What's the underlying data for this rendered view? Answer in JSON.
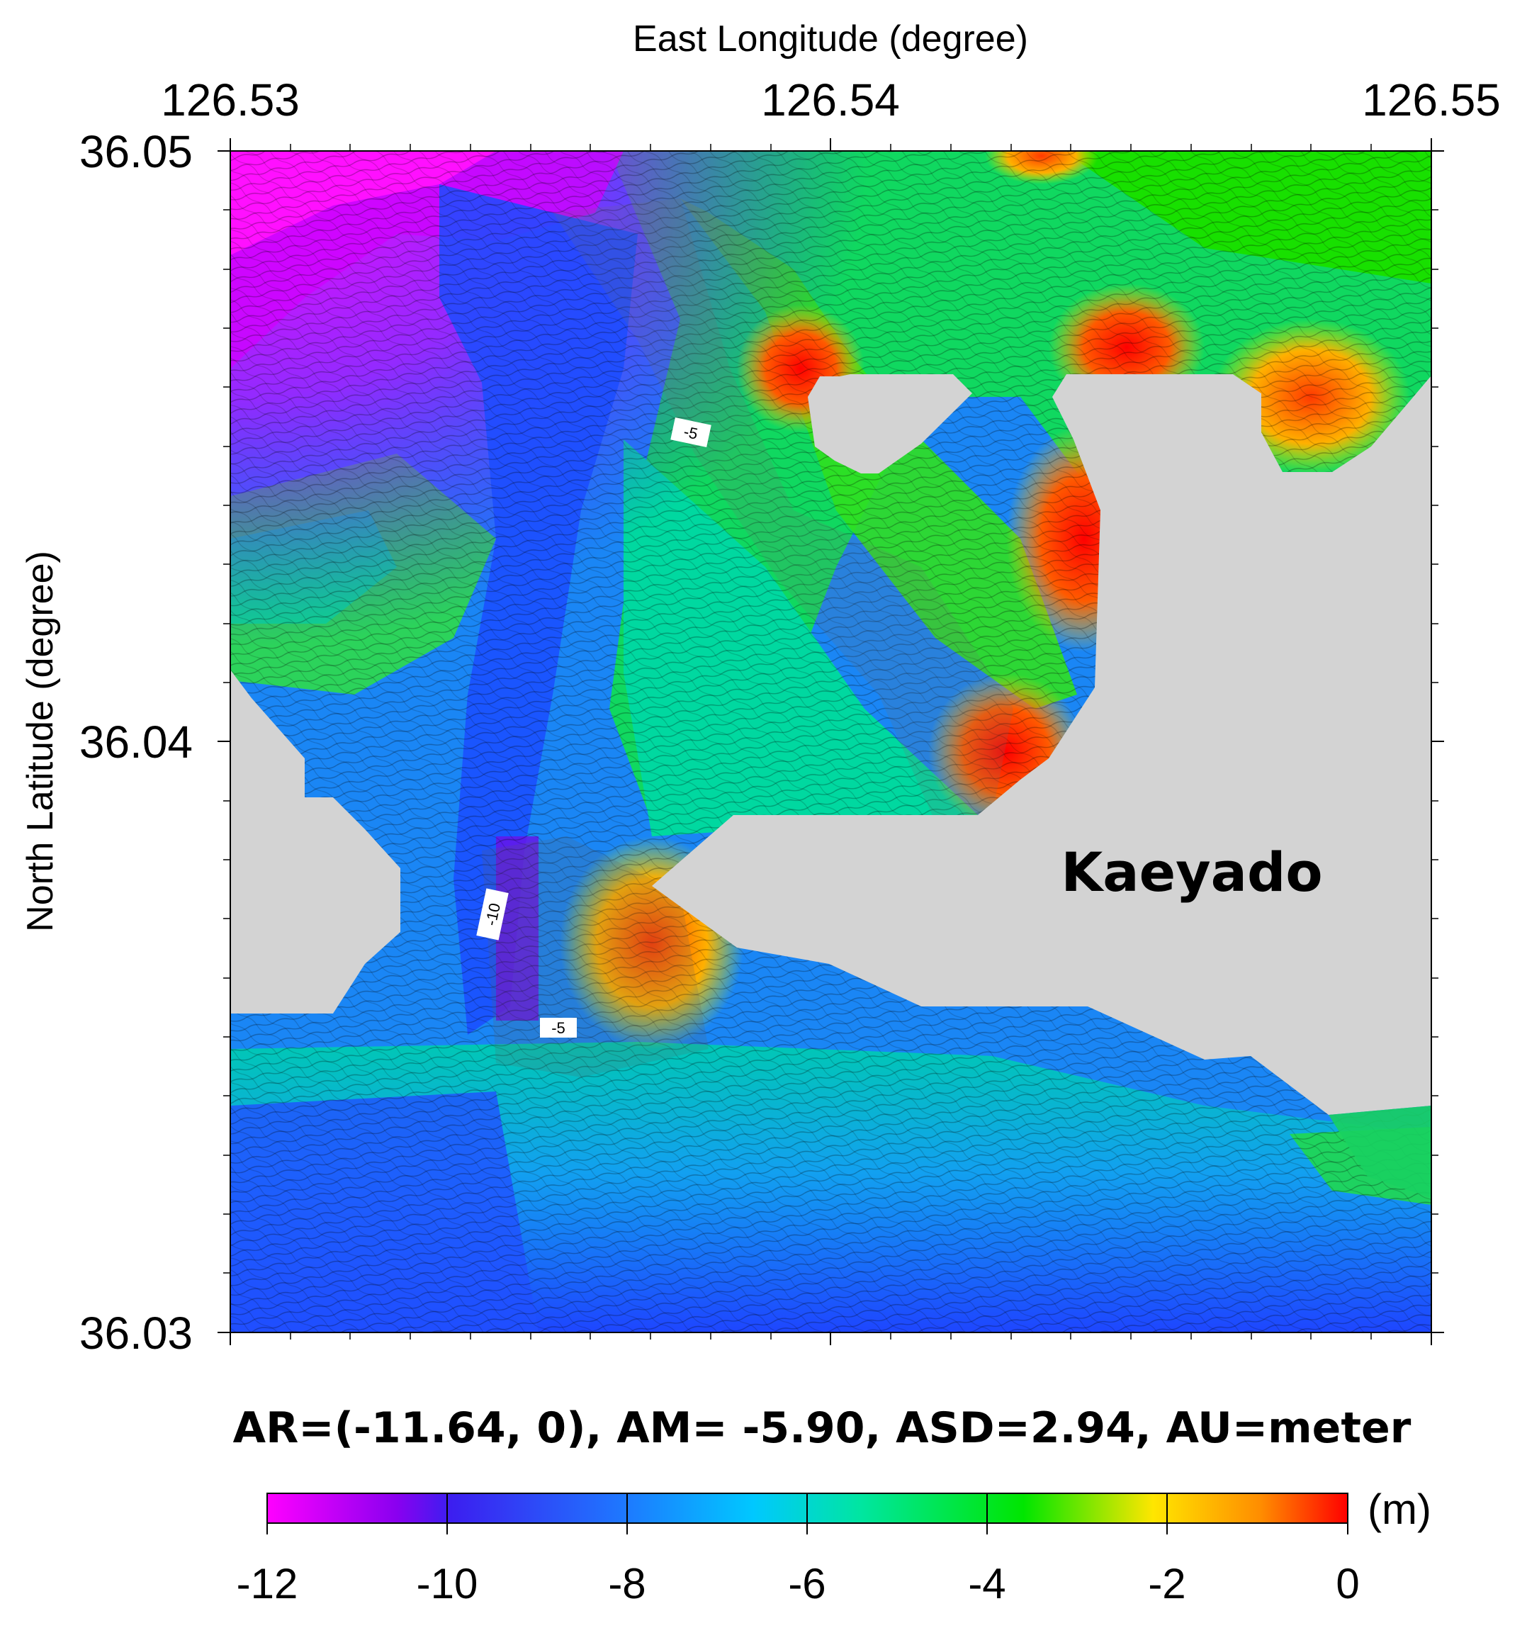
{
  "map": {
    "x_axis_title": "East Longitude (degree)",
    "y_axis_title": "North Latitude (degree)",
    "x_ticks": [
      "126.53",
      "126.54",
      "126.55"
    ],
    "y_ticks": [
      "36.05",
      "36.04",
      "36.03"
    ],
    "place_label": "Kaeyado",
    "contour_labels": [
      "-5",
      "-10",
      "-5"
    ],
    "stats_text": "AR=(-11.64, 0), AM= -5.90, ASD=2.94, AU=meter",
    "land_color": "#d3d3d3"
  },
  "colorbar": {
    "unit": "(m)",
    "ticks": [
      "-12",
      "-10",
      "-8",
      "-6",
      "-4",
      "-2",
      "0"
    ],
    "colors": [
      "#ff00ff",
      "#4b00e6",
      "#1e64ff",
      "#00c8ff",
      "#00e6a0",
      "#00e600",
      "#ffe600",
      "#ff8c00",
      "#ff0000"
    ]
  }
}
